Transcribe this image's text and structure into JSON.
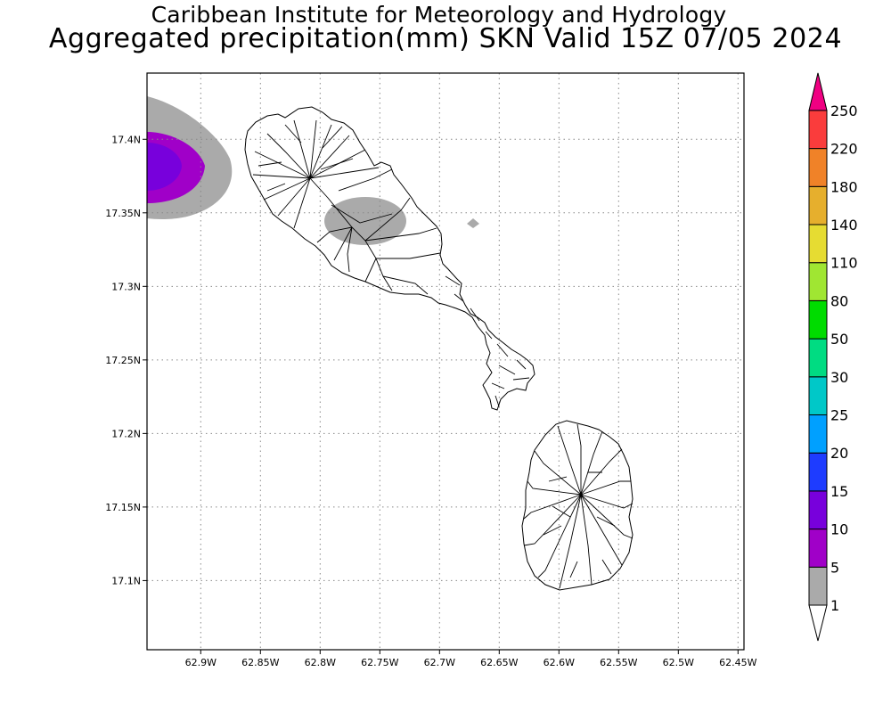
{
  "header": {
    "line1": "Caribbean Institute for Meteorology and Hydrology",
    "line2": "Aggregated precipitation(mm) SKN Valid 15Z 07/05 2024"
  },
  "map": {
    "region": "SKN",
    "units": "mm",
    "lon_range": [
      -62.945,
      -62.445
    ],
    "lat_range": [
      17.053,
      17.445
    ],
    "lon_ticks": [
      {
        "value": -62.9,
        "label": "62.9W"
      },
      {
        "value": -62.85,
        "label": "62.85W"
      },
      {
        "value": -62.8,
        "label": "62.8W"
      },
      {
        "value": -62.75,
        "label": "62.75W"
      },
      {
        "value": -62.7,
        "label": "62.7W"
      },
      {
        "value": -62.65,
        "label": "62.65W"
      },
      {
        "value": -62.6,
        "label": "62.6W"
      },
      {
        "value": -62.55,
        "label": "62.55W"
      },
      {
        "value": -62.5,
        "label": "62.5W"
      },
      {
        "value": -62.45,
        "label": "62.45W"
      }
    ],
    "lat_ticks": [
      {
        "value": 17.4,
        "label": "17.4N"
      },
      {
        "value": 17.35,
        "label": "17.35N"
      },
      {
        "value": 17.3,
        "label": "17.3N"
      },
      {
        "value": 17.25,
        "label": "17.25N"
      },
      {
        "value": 17.2,
        "label": "17.2N"
      },
      {
        "value": 17.15,
        "label": "17.15N"
      },
      {
        "value": 17.1,
        "label": "17.1N"
      }
    ],
    "grid": true
  },
  "legend": {
    "levels": [
      "1",
      "5",
      "10",
      "15",
      "20",
      "25",
      "30",
      "50",
      "80",
      "110",
      "140",
      "180",
      "220",
      "250"
    ],
    "colors": [
      "#aaaaaa",
      "#a000c8",
      "#7800dc",
      "#1e3cff",
      "#00a0ff",
      "#00c8c8",
      "#00dc82",
      "#00dc00",
      "#a0e632",
      "#e6dc32",
      "#e6af2d",
      "#f08228",
      "#fa3c3c",
      "#f00082"
    ],
    "under_color": "#ffffff",
    "over_color": "#f00082"
  }
}
